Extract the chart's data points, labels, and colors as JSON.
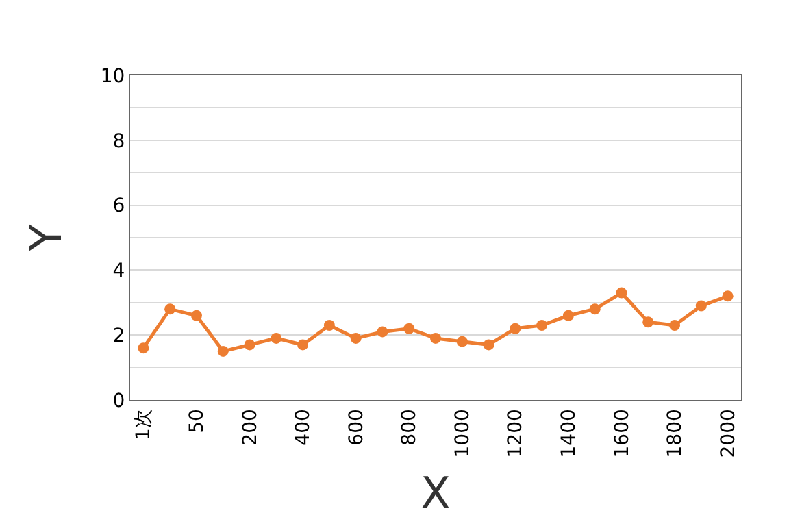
{
  "chart_data": {
    "type": "line",
    "xlabel": "X",
    "ylabel": "Y",
    "categories": [
      "1次",
      null,
      "50",
      null,
      "200",
      null,
      "400",
      null,
      "600",
      null,
      "800",
      null,
      "1000",
      null,
      "1200",
      null,
      "1400",
      null,
      "1600",
      null,
      "1800",
      null,
      "2000"
    ],
    "series": [
      {
        "color": "#ed7d31",
        "values": [
          1.6,
          2.8,
          2.6,
          1.5,
          1.7,
          1.9,
          1.7,
          2.3,
          1.9,
          2.1,
          2.2,
          1.9,
          1.8,
          1.7,
          2.2,
          2.3,
          2.6,
          2.8,
          3.3,
          2.4,
          2.3,
          2.9,
          3.2
        ]
      }
    ],
    "ylim": [
      0,
      10
    ],
    "yticks": [
      0,
      {
        "value": 1,
        "label": null
      },
      2,
      {
        "value": 3,
        "label": null
      },
      4,
      {
        "value": 5,
        "label": null
      },
      6,
      {
        "value": 7,
        "label": null
      },
      8,
      {
        "value": 9,
        "label": null
      },
      10
    ],
    "grid": "y",
    "marker": "circle",
    "line_style": "solid",
    "legend": false
  }
}
